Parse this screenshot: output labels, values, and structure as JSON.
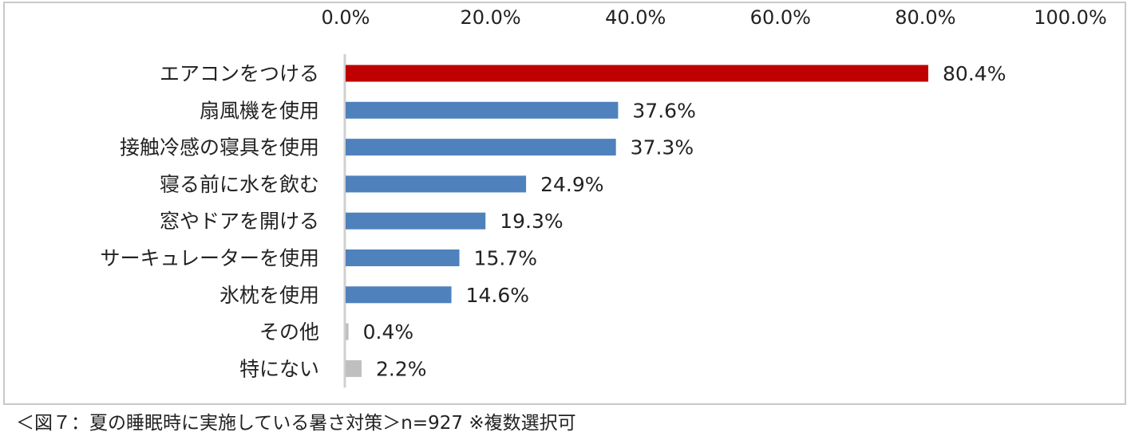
{
  "caption": "＜図７：夏の睡眠時に実施している暑さ対策＞n=927 ※複数選択可",
  "colors": {
    "highlight": "#c00000",
    "primary": "#4f81bd",
    "muted": "#bfbfbf",
    "axis": "#d0d0d0",
    "frame": "#c8c8c8"
  },
  "chart_data": {
    "type": "bar",
    "orientation": "horizontal",
    "title": "",
    "xlabel": "",
    "ylabel": "",
    "xlim": [
      0,
      100
    ],
    "axis_position": "top",
    "grid": false,
    "x_ticks": [
      0,
      20,
      40,
      60,
      80,
      100
    ],
    "x_tick_labels": [
      "0.0%",
      "20.0%",
      "40.0%",
      "60.0%",
      "80.0%",
      "100.0%"
    ],
    "categories": [
      "エアコンをつける",
      "扇風機を使用",
      "接触冷感の寝具を使用",
      "寝る前に水を飲む",
      "窓やドアを開ける",
      "サーキュレーターを使用",
      "氷枕を使用",
      "その他",
      "特にない"
    ],
    "values": [
      80.4,
      37.6,
      37.3,
      24.9,
      19.3,
      15.7,
      14.6,
      0.4,
      2.2
    ],
    "value_labels": [
      "80.4%",
      "37.6%",
      "37.3%",
      "24.9%",
      "19.3%",
      "15.7%",
      "14.6%",
      "0.4%",
      "2.2%"
    ],
    "bar_colors": [
      "#c00000",
      "#4f81bd",
      "#4f81bd",
      "#4f81bd",
      "#4f81bd",
      "#4f81bd",
      "#4f81bd",
      "#bfbfbf",
      "#bfbfbf"
    ]
  }
}
